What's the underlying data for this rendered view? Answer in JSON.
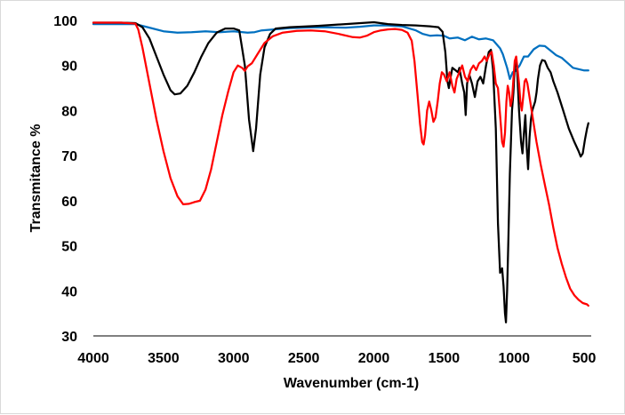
{
  "chart_data": {
    "type": "line",
    "title": "",
    "xlabel": "Wavenumber (cm-1)",
    "ylabel": "Transmitance %",
    "xlim": [
      4000,
      450
    ],
    "ylim": [
      30,
      100
    ],
    "x_reversed": true,
    "x_ticks": [
      4000,
      3500,
      3000,
      2500,
      2000,
      1500,
      1000,
      500
    ],
    "x_tick_labels": [
      "4000",
      "3500",
      "3000",
      "2500",
      "2000",
      "1500",
      "1000",
      "500"
    ],
    "y_ticks": [
      30,
      40,
      50,
      60,
      70,
      80,
      90,
      100
    ],
    "y_tick_labels": [
      "30",
      "40",
      "50",
      "60",
      "70",
      "80",
      "90",
      "100"
    ],
    "grid": false,
    "legend": "none",
    "series": [
      {
        "color": "#0070C0",
        "points": [
          [
            4000,
            99.2
          ],
          [
            3800,
            99.2
          ],
          [
            3700,
            99.2
          ],
          [
            3600,
            98.4
          ],
          [
            3500,
            97.6
          ],
          [
            3400,
            97.3
          ],
          [
            3300,
            97.4
          ],
          [
            3200,
            97.6
          ],
          [
            3100,
            97.4
          ],
          [
            3000,
            97.6
          ],
          [
            2900,
            97.3
          ],
          [
            2850,
            97.4
          ],
          [
            2800,
            97.8
          ],
          [
            2600,
            98.3
          ],
          [
            2400,
            98.5
          ],
          [
            2200,
            98.4
          ],
          [
            2100,
            98.6
          ],
          [
            2000,
            98.9
          ],
          [
            1900,
            98.9
          ],
          [
            1800,
            98.7
          ],
          [
            1700,
            97.8
          ],
          [
            1650,
            97.0
          ],
          [
            1600,
            96.6
          ],
          [
            1550,
            96.7
          ],
          [
            1500,
            96.6
          ],
          [
            1460,
            96.0
          ],
          [
            1400,
            96.2
          ],
          [
            1350,
            95.6
          ],
          [
            1300,
            96.4
          ],
          [
            1250,
            95.8
          ],
          [
            1200,
            96.0
          ],
          [
            1150,
            95.6
          ],
          [
            1100,
            93.8
          ],
          [
            1080,
            92.5
          ],
          [
            1050,
            89.5
          ],
          [
            1030,
            87.0
          ],
          [
            1010,
            88.5
          ],
          [
            990,
            88.8
          ],
          [
            960,
            90.0
          ],
          [
            930,
            92.0
          ],
          [
            900,
            92.0
          ],
          [
            860,
            93.6
          ],
          [
            820,
            94.4
          ],
          [
            780,
            94.3
          ],
          [
            740,
            93.3
          ],
          [
            700,
            92.3
          ],
          [
            660,
            91.7
          ],
          [
            620,
            90.6
          ],
          [
            580,
            89.5
          ],
          [
            540,
            89.2
          ],
          [
            500,
            88.9
          ],
          [
            470,
            88.9
          ]
        ]
      },
      {
        "color": "#000000",
        "points": [
          [
            4000,
            99.5
          ],
          [
            3800,
            99.5
          ],
          [
            3700,
            99.4
          ],
          [
            3650,
            98.5
          ],
          [
            3600,
            96.0
          ],
          [
            3550,
            92.0
          ],
          [
            3500,
            88.0
          ],
          [
            3450,
            84.5
          ],
          [
            3420,
            83.6
          ],
          [
            3380,
            83.8
          ],
          [
            3330,
            85.5
          ],
          [
            3280,
            88.5
          ],
          [
            3230,
            92.0
          ],
          [
            3180,
            95.0
          ],
          [
            3120,
            97.3
          ],
          [
            3060,
            98.2
          ],
          [
            3000,
            98.2
          ],
          [
            2960,
            97.8
          ],
          [
            2940,
            94.0
          ],
          [
            2920,
            90.0
          ],
          [
            2890,
            78.0
          ],
          [
            2860,
            71.0
          ],
          [
            2840,
            76.0
          ],
          [
            2810,
            88.0
          ],
          [
            2780,
            94.0
          ],
          [
            2740,
            97.0
          ],
          [
            2700,
            98.2
          ],
          [
            2600,
            98.5
          ],
          [
            2400,
            98.8
          ],
          [
            2200,
            99.2
          ],
          [
            2000,
            99.6
          ],
          [
            1900,
            99.2
          ],
          [
            1800,
            99.0
          ],
          [
            1700,
            98.9
          ],
          [
            1600,
            98.7
          ],
          [
            1540,
            98.5
          ],
          [
            1510,
            97.5
          ],
          [
            1490,
            93.0
          ],
          [
            1475,
            86.5
          ],
          [
            1465,
            85.0
          ],
          [
            1455,
            87.0
          ],
          [
            1440,
            89.5
          ],
          [
            1420,
            89.0
          ],
          [
            1400,
            88.5
          ],
          [
            1390,
            89.5
          ],
          [
            1370,
            86.0
          ],
          [
            1355,
            84.0
          ],
          [
            1345,
            79.0
          ],
          [
            1335,
            86.0
          ],
          [
            1320,
            88.0
          ],
          [
            1300,
            86.0
          ],
          [
            1280,
            83.0
          ],
          [
            1260,
            86.5
          ],
          [
            1240,
            87.5
          ],
          [
            1220,
            86.0
          ],
          [
            1200,
            90.0
          ],
          [
            1180,
            93.0
          ],
          [
            1165,
            93.5
          ],
          [
            1150,
            89.0
          ],
          [
            1130,
            76.0
          ],
          [
            1115,
            55.0
          ],
          [
            1100,
            44.0
          ],
          [
            1085,
            45.0
          ],
          [
            1075,
            41.0
          ],
          [
            1065,
            35.0
          ],
          [
            1058,
            33.0
          ],
          [
            1050,
            40.0
          ],
          [
            1040,
            52.0
          ],
          [
            1030,
            66.0
          ],
          [
            1015,
            80.0
          ],
          [
            1005,
            84.0
          ],
          [
            995,
            90.0
          ],
          [
            985,
            91.5
          ],
          [
            975,
            87.0
          ],
          [
            965,
            80.0
          ],
          [
            950,
            73.0
          ],
          [
            940,
            70.5
          ],
          [
            930,
            75.0
          ],
          [
            920,
            79.0
          ],
          [
            910,
            72.0
          ],
          [
            900,
            67.0
          ],
          [
            890,
            74.0
          ],
          [
            880,
            78.0
          ],
          [
            870,
            80.0
          ],
          [
            850,
            82.0
          ],
          [
            840,
            84.0
          ],
          [
            830,
            87.0
          ],
          [
            815,
            90.0
          ],
          [
            800,
            91.2
          ],
          [
            780,
            91.0
          ],
          [
            760,
            89.5
          ],
          [
            740,
            88.5
          ],
          [
            720,
            86.5
          ],
          [
            690,
            84.0
          ],
          [
            650,
            80.0
          ],
          [
            610,
            76.0
          ],
          [
            570,
            73.0
          ],
          [
            540,
            71.0
          ],
          [
            525,
            69.8
          ],
          [
            510,
            70.5
          ],
          [
            495,
            73.5
          ],
          [
            480,
            76.0
          ],
          [
            470,
            77.2
          ]
        ]
      },
      {
        "color": "#FF0000",
        "points": [
          [
            4000,
            99.5
          ],
          [
            3800,
            99.5
          ],
          [
            3700,
            99.3
          ],
          [
            3680,
            98.0
          ],
          [
            3650,
            94.0
          ],
          [
            3600,
            86.0
          ],
          [
            3550,
            78.0
          ],
          [
            3500,
            71.0
          ],
          [
            3450,
            65.0
          ],
          [
            3400,
            61.0
          ],
          [
            3360,
            59.2
          ],
          [
            3320,
            59.3
          ],
          [
            3280,
            59.7
          ],
          [
            3240,
            60.0
          ],
          [
            3200,
            62.5
          ],
          [
            3160,
            67.0
          ],
          [
            3120,
            73.0
          ],
          [
            3080,
            79.0
          ],
          [
            3040,
            84.0
          ],
          [
            3000,
            88.5
          ],
          [
            2970,
            90.0
          ],
          [
            2940,
            89.5
          ],
          [
            2920,
            88.8
          ],
          [
            2900,
            89.8
          ],
          [
            2870,
            90.5
          ],
          [
            2830,
            92.5
          ],
          [
            2780,
            95.0
          ],
          [
            2720,
            96.5
          ],
          [
            2650,
            97.3
          ],
          [
            2550,
            97.7
          ],
          [
            2450,
            97.8
          ],
          [
            2350,
            97.6
          ],
          [
            2250,
            97.0
          ],
          [
            2150,
            96.3
          ],
          [
            2100,
            96.2
          ],
          [
            2050,
            96.6
          ],
          [
            2000,
            97.4
          ],
          [
            1950,
            97.8
          ],
          [
            1900,
            98.0
          ],
          [
            1850,
            98.1
          ],
          [
            1800,
            97.9
          ],
          [
            1760,
            97.3
          ],
          [
            1730,
            95.5
          ],
          [
            1710,
            91.0
          ],
          [
            1690,
            84.0
          ],
          [
            1670,
            77.0
          ],
          [
            1655,
            73.0
          ],
          [
            1645,
            72.5
          ],
          [
            1635,
            74.5
          ],
          [
            1620,
            80.0
          ],
          [
            1605,
            82.0
          ],
          [
            1590,
            80.0
          ],
          [
            1575,
            77.5
          ],
          [
            1560,
            78.5
          ],
          [
            1545,
            82.0
          ],
          [
            1530,
            86.0
          ],
          [
            1515,
            88.5
          ],
          [
            1500,
            88.0
          ],
          [
            1480,
            86.5
          ],
          [
            1460,
            88.5
          ],
          [
            1440,
            85.5
          ],
          [
            1425,
            84.0
          ],
          [
            1410,
            87.0
          ],
          [
            1390,
            88.5
          ],
          [
            1370,
            90.0
          ],
          [
            1350,
            87.5
          ],
          [
            1330,
            86.5
          ],
          [
            1310,
            89.0
          ],
          [
            1290,
            90.0
          ],
          [
            1270,
            89.0
          ],
          [
            1250,
            90.5
          ],
          [
            1230,
            91.0
          ],
          [
            1210,
            92.0
          ],
          [
            1195,
            91.0
          ],
          [
            1175,
            92.5
          ],
          [
            1160,
            93.0
          ],
          [
            1145,
            90.0
          ],
          [
            1130,
            86.0
          ],
          [
            1115,
            85.0
          ],
          [
            1100,
            79.0
          ],
          [
            1085,
            73.0
          ],
          [
            1075,
            72.0
          ],
          [
            1065,
            75.0
          ],
          [
            1055,
            82.0
          ],
          [
            1045,
            85.5
          ],
          [
            1035,
            84.0
          ],
          [
            1025,
            81.0
          ],
          [
            1015,
            82.5
          ],
          [
            1005,
            87.0
          ],
          [
            995,
            91.0
          ],
          [
            985,
            92.0
          ],
          [
            975,
            89.0
          ],
          [
            965,
            86.0
          ],
          [
            955,
            82.0
          ],
          [
            945,
            80.0
          ],
          [
            935,
            83.0
          ],
          [
            925,
            86.5
          ],
          [
            915,
            87.0
          ],
          [
            905,
            86.0
          ],
          [
            895,
            84.0
          ],
          [
            880,
            81.0
          ],
          [
            860,
            77.0
          ],
          [
            840,
            73.0
          ],
          [
            810,
            68.0
          ],
          [
            780,
            63.5
          ],
          [
            750,
            59.0
          ],
          [
            720,
            54.0
          ],
          [
            690,
            49.5
          ],
          [
            660,
            46.0
          ],
          [
            630,
            43.0
          ],
          [
            600,
            40.5
          ],
          [
            570,
            39.0
          ],
          [
            540,
            38.0
          ],
          [
            510,
            37.3
          ],
          [
            480,
            37.0
          ],
          [
            470,
            36.7
          ]
        ]
      }
    ]
  }
}
